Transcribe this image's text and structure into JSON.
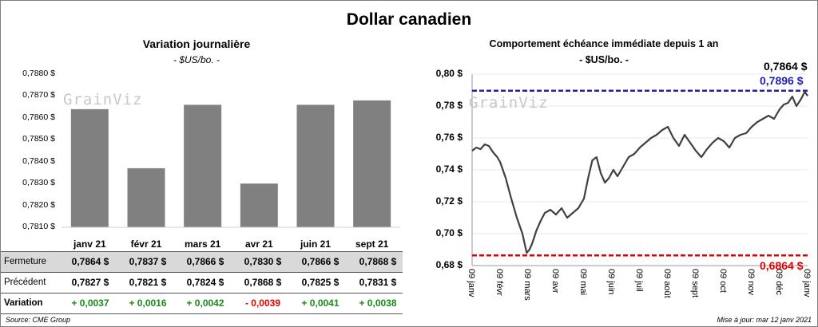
{
  "title": "Dollar canadien",
  "left_chart": {
    "title": "Variation  journalière",
    "subtitle": "- $US/bo. -",
    "watermark": "GrainViz",
    "bar_color": "#808080"
  },
  "right_chart": {
    "title": "Comportement échéance immédiate depuis 1 an",
    "subtitle": "- $US/bo. -",
    "watermark": "GrainViz",
    "line_color": "#404040",
    "high_color": "#1f1fb4",
    "low_color": "#e00000"
  },
  "table": {
    "rows": [
      {
        "label": "Fermeture",
        "values": [
          "0,7864  $",
          "0,7837  $",
          "0,7866  $",
          "0,7830  $",
          "0,7866  $",
          "0,7868  $"
        ]
      },
      {
        "label": "Précédent",
        "values": [
          "0,7827  $",
          "0,7821  $",
          "0,7824  $",
          "0,7868  $",
          "0,7825  $",
          "0,7831  $"
        ]
      },
      {
        "label": "Variation",
        "values": [
          "+ 0,0037",
          "+ 0,0016",
          "+ 0,0042",
          "- 0,0039",
          "+ 0,0041",
          "+ 0,0038"
        ]
      }
    ],
    "change_colors": [
      "#1a8a1a",
      "#1a8a1a",
      "#1a8a1a",
      "#e00000",
      "#1a8a1a",
      "#1a8a1a"
    ]
  },
  "footer": {
    "source": "Source: CME Group",
    "updated": "Mise à jour: mar 12 janv 2021"
  },
  "chart_data": [
    {
      "type": "bar",
      "title": "Variation  journalière",
      "subtitle": "- $US/bo. -",
      "categories": [
        "janv 21",
        "févr 21",
        "mars 21",
        "avr 21",
        "juin 21",
        "sept 21"
      ],
      "values": [
        0.7864,
        0.7837,
        0.7866,
        0.783,
        0.7866,
        0.7868
      ],
      "ylim": [
        0.781,
        0.788
      ],
      "yticks": [
        0.781,
        0.782,
        0.783,
        0.784,
        0.785,
        0.786,
        0.787,
        0.788
      ],
      "ytick_labels": [
        "0,7810 $",
        "0,7820 $",
        "0,7830 $",
        "0,7840 $",
        "0,7850 $",
        "0,7860 $",
        "0,7870 $",
        "0,7880 $"
      ],
      "xlabel": "",
      "ylabel": ""
    },
    {
      "type": "line",
      "title": "Comportement échéance immédiate depuis 1 an",
      "subtitle": "- $US/bo. -",
      "ylim": [
        0.68,
        0.8
      ],
      "yticks": [
        0.68,
        0.7,
        0.72,
        0.74,
        0.76,
        0.78,
        0.8
      ],
      "ytick_labels": [
        "0,68 $",
        "0,70 $",
        "0,72 $",
        "0,74 $",
        "0,76 $",
        "0,78 $",
        "0,80 $"
      ],
      "xlabels": [
        "09 janv",
        "09 févr",
        "09 mars",
        "09 avr",
        "09 mai",
        "09 juin",
        "09 juil",
        "09 août",
        "09 sept",
        "09 oct",
        "09 nov",
        "09 déc",
        "09 janv"
      ],
      "high_line": {
        "value": 0.7896,
        "label": "0,7896 $"
      },
      "low_line": {
        "value": 0.6864,
        "label": "0,6864 $"
      },
      "last_value": {
        "value": 0.7864,
        "label": "0,7864 $"
      },
      "series": [
        {
          "name": "Dollar canadien",
          "x": [
            0,
            0.15,
            0.3,
            0.45,
            0.6,
            0.75,
            0.9,
            1.0,
            1.2,
            1.4,
            1.6,
            1.8,
            1.95,
            2.05,
            2.15,
            2.3,
            2.45,
            2.6,
            2.8,
            3.0,
            3.2,
            3.4,
            3.6,
            3.8,
            4.0,
            4.15,
            4.3,
            4.45,
            4.6,
            4.75,
            4.9,
            5.05,
            5.2,
            5.4,
            5.6,
            5.8,
            6.0,
            6.2,
            6.4,
            6.6,
            6.8,
            7.0,
            7.2,
            7.4,
            7.6,
            7.8,
            8.0,
            8.2,
            8.4,
            8.6,
            8.8,
            9.0,
            9.2,
            9.4,
            9.6,
            9.8,
            10.0,
            10.2,
            10.4,
            10.6,
            10.8,
            11.0,
            11.15,
            11.3,
            11.45,
            11.6,
            11.75,
            11.9,
            12.0
          ],
          "values": [
            0.752,
            0.754,
            0.753,
            0.756,
            0.755,
            0.751,
            0.748,
            0.745,
            0.735,
            0.722,
            0.71,
            0.7,
            0.688,
            0.69,
            0.694,
            0.702,
            0.708,
            0.713,
            0.715,
            0.712,
            0.716,
            0.71,
            0.713,
            0.716,
            0.722,
            0.735,
            0.746,
            0.748,
            0.738,
            0.732,
            0.735,
            0.74,
            0.736,
            0.742,
            0.748,
            0.75,
            0.754,
            0.757,
            0.76,
            0.762,
            0.765,
            0.767,
            0.76,
            0.755,
            0.762,
            0.757,
            0.752,
            0.748,
            0.753,
            0.757,
            0.76,
            0.758,
            0.754,
            0.76,
            0.762,
            0.763,
            0.767,
            0.77,
            0.772,
            0.774,
            0.772,
            0.778,
            0.781,
            0.782,
            0.786,
            0.78,
            0.784,
            0.789,
            0.7864
          ]
        }
      ]
    }
  ]
}
